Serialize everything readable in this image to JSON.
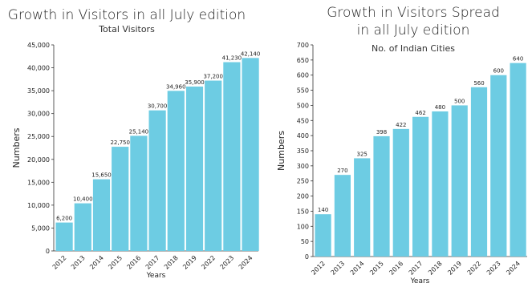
{
  "chart_data": [
    {
      "type": "bar",
      "title": "Growth in Visitors in all July edition",
      "subtitle": "Total Visitors",
      "xlabel": "Years",
      "ylabel": "Numbers",
      "ylim": [
        0,
        45000
      ],
      "yticks": [
        "0",
        "5,000",
        "10,000",
        "15,000",
        "20,000",
        "25,000",
        "30,000",
        "35,000",
        "40,000",
        "45,000"
      ],
      "categories": [
        "2012",
        "2013",
        "2014",
        "2015",
        "2016",
        "2017",
        "2018",
        "2019",
        "2022",
        "2023",
        "2024"
      ],
      "values": [
        6200,
        10400,
        15650,
        22750,
        25140,
        30700,
        34960,
        35900,
        37200,
        41230,
        42140
      ],
      "value_labels": [
        "6,200",
        "10,400",
        "15,650",
        "22,750",
        "25,140",
        "30,700",
        "34,960",
        "35,900",
        "37,200",
        "41,230",
        "42,140"
      ],
      "color": "#6dcce3",
      "grid": false
    },
    {
      "type": "bar",
      "title_lines": [
        "Growth in Visitors Spread",
        "in all July edition"
      ],
      "subtitle": "No. of Indian Cities",
      "xlabel": "Years",
      "ylabel": "Numbers",
      "ylim": [
        0,
        700
      ],
      "yticks": [
        "0",
        "50",
        "100",
        "150",
        "200",
        "250",
        "300",
        "350",
        "400",
        "450",
        "500",
        "550",
        "600",
        "650",
        "700"
      ],
      "categories": [
        "2012",
        "2013",
        "2014",
        "2015",
        "2016",
        "2017",
        "2018",
        "2019",
        "2022",
        "2023",
        "2024"
      ],
      "values": [
        140,
        270,
        325,
        398,
        422,
        462,
        480,
        500,
        560,
        600,
        640
      ],
      "value_labels": [
        "140",
        "270",
        "325",
        "398",
        "422",
        "462",
        "480",
        "500",
        "560",
        "600",
        "640"
      ],
      "color": "#6dcce3",
      "grid": false
    }
  ]
}
